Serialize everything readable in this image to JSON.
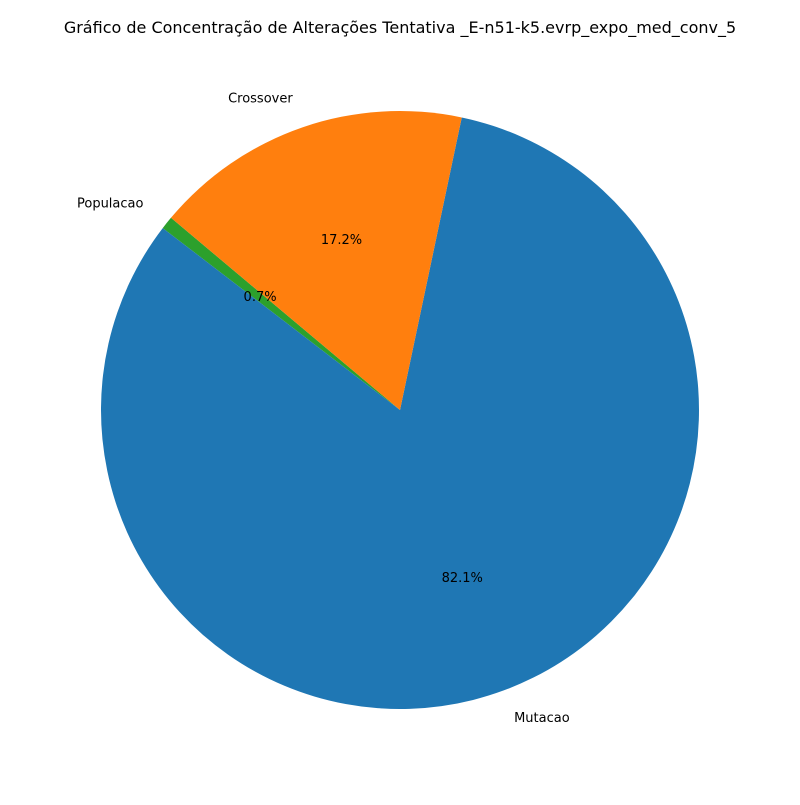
{
  "chart_data": {
    "type": "pie",
    "title": "Gráfico de Concentração de Alterações Tentativa _E-n51-k5.evrp_expo_med_conv_5",
    "slices": [
      {
        "label": "Populacao",
        "value": 0.7,
        "pct_label": "0.7%",
        "color": "#2ca02c"
      },
      {
        "label": "Mutacao",
        "value": 82.1,
        "pct_label": "82.1%",
        "color": "#1f77b4"
      },
      {
        "label": "Crossover",
        "value": 17.2,
        "pct_label": "17.2%",
        "color": "#ff7f0e"
      }
    ],
    "start_angle_deg": 140,
    "direction": "counterclockwise"
  }
}
